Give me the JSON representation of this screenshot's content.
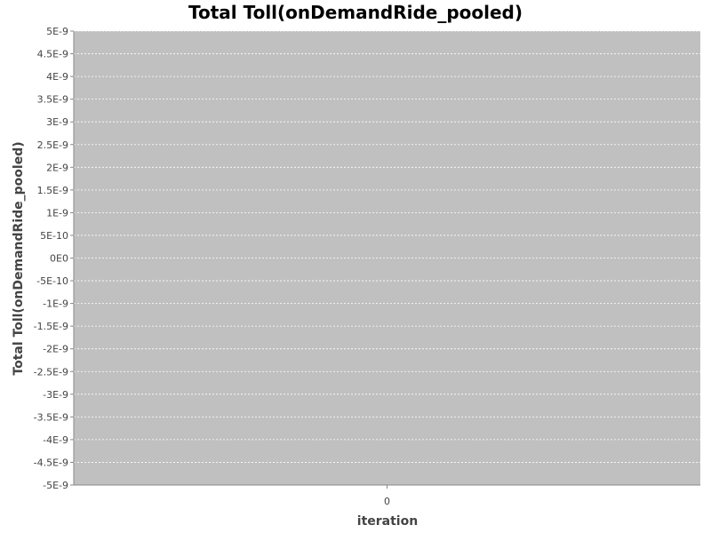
{
  "chart_data": {
    "type": "bar",
    "title": "Total Toll(onDemandRide_pooled)",
    "xlabel": "iteration",
    "ylabel": "Total Toll(onDemandRide_pooled)",
    "categories": [
      "0"
    ],
    "series": [
      {
        "values": [
          0
        ]
      }
    ],
    "ylim": [
      -5e-09,
      5e-09
    ],
    "y_ticks": [
      {
        "value": 5e-09,
        "label": "5E-9"
      },
      {
        "value": 4.5e-09,
        "label": "4.5E-9"
      },
      {
        "value": 4e-09,
        "label": "4E-9"
      },
      {
        "value": 3.5e-09,
        "label": "3.5E-9"
      },
      {
        "value": 3e-09,
        "label": "3E-9"
      },
      {
        "value": 2.5e-09,
        "label": "2.5E-9"
      },
      {
        "value": 2e-09,
        "label": "2E-9"
      },
      {
        "value": 1.5e-09,
        "label": "1.5E-9"
      },
      {
        "value": 1e-09,
        "label": "1E-9"
      },
      {
        "value": 5e-10,
        "label": "5E-10"
      },
      {
        "value": 0,
        "label": "0E0"
      },
      {
        "value": -5e-10,
        "label": "-5E-10"
      },
      {
        "value": -1e-09,
        "label": "-1E-9"
      },
      {
        "value": -1.5e-09,
        "label": "-1.5E-9"
      },
      {
        "value": -2e-09,
        "label": "-2E-9"
      },
      {
        "value": -2.5e-09,
        "label": "-2.5E-9"
      },
      {
        "value": -3e-09,
        "label": "-3E-9"
      },
      {
        "value": -3.5e-09,
        "label": "-3.5E-9"
      },
      {
        "value": -4e-09,
        "label": "-4E-9"
      },
      {
        "value": -4.5e-09,
        "label": "-4.5E-9"
      },
      {
        "value": -5e-09,
        "label": "-5E-9"
      }
    ],
    "grid": true,
    "legend": "none",
    "colors": {
      "plot_background": "#c0c0c0",
      "gridline": "#ffffff",
      "axis": "#888888"
    }
  }
}
